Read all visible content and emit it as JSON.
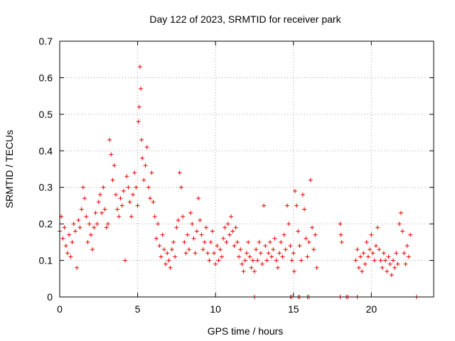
{
  "chart_data": {
    "type": "scatter",
    "title": "Day 122 of 2023, SRMTID for receiver park",
    "xlabel": "GPS time / hours",
    "ylabel": "SRMTID / TECUs",
    "xlim": [
      0,
      24
    ],
    "ylim": [
      0,
      0.7
    ],
    "xticks": [
      0,
      5,
      10,
      15,
      20
    ],
    "xtick_labels": [
      "0",
      "5",
      "10",
      "15",
      "20"
    ],
    "yticks": [
      0,
      0.1,
      0.2,
      0.3,
      0.4,
      0.5,
      0.6,
      0.7
    ],
    "ytick_labels": [
      "0",
      "0.1",
      "0.2",
      "0.3",
      "0.4",
      "0.5",
      "0.6",
      "0.7"
    ],
    "grid": true,
    "marker": "plus",
    "color": "#ee0000",
    "series": [
      {
        "name": "SRMTID",
        "points": [
          [
            0.0,
            0.18
          ],
          [
            0.1,
            0.22
          ],
          [
            0.2,
            0.16
          ],
          [
            0.3,
            0.19
          ],
          [
            0.4,
            0.14
          ],
          [
            0.5,
            0.12
          ],
          [
            0.6,
            0.17
          ],
          [
            0.7,
            0.11
          ],
          [
            0.8,
            0.15
          ],
          [
            0.9,
            0.2
          ],
          [
            1.0,
            0.18
          ],
          [
            1.1,
            0.08
          ],
          [
            1.2,
            0.21
          ],
          [
            1.3,
            0.19
          ],
          [
            1.4,
            0.24
          ],
          [
            1.5,
            0.3
          ],
          [
            1.6,
            0.27
          ],
          [
            1.7,
            0.22
          ],
          [
            1.8,
            0.15
          ],
          [
            1.9,
            0.2
          ],
          [
            2.0,
            0.17
          ],
          [
            2.1,
            0.13
          ],
          [
            2.2,
            0.19
          ],
          [
            2.3,
            0.23
          ],
          [
            2.4,
            0.2
          ],
          [
            2.5,
            0.26
          ],
          [
            2.6,
            0.28
          ],
          [
            2.7,
            0.23
          ],
          [
            2.8,
            0.3
          ],
          [
            2.9,
            0.24
          ],
          [
            3.0,
            0.19
          ],
          [
            3.1,
            0.2
          ],
          [
            3.2,
            0.43
          ],
          [
            3.3,
            0.39
          ],
          [
            3.4,
            0.32
          ],
          [
            3.5,
            0.36
          ],
          [
            3.6,
            0.28
          ],
          [
            3.7,
            0.24
          ],
          [
            3.8,
            0.22
          ],
          [
            3.9,
            0.27
          ],
          [
            4.0,
            0.25
          ],
          [
            4.1,
            0.29
          ],
          [
            4.2,
            0.1
          ],
          [
            4.3,
            0.33
          ],
          [
            4.4,
            0.3
          ],
          [
            4.5,
            0.26
          ],
          [
            4.6,
            0.22
          ],
          [
            4.7,
            0.28
          ],
          [
            4.8,
            0.34
          ],
          [
            4.9,
            0.3
          ],
          [
            5.0,
            0.25
          ],
          [
            5.05,
            0.48
          ],
          [
            5.1,
            0.52
          ],
          [
            5.15,
            0.63
          ],
          [
            5.2,
            0.57
          ],
          [
            5.25,
            0.43
          ],
          [
            5.3,
            0.38
          ],
          [
            5.4,
            0.32
          ],
          [
            5.5,
            0.36
          ],
          [
            5.6,
            0.41
          ],
          [
            5.7,
            0.3
          ],
          [
            5.8,
            0.27
          ],
          [
            5.9,
            0.34
          ],
          [
            6.0,
            0.26
          ],
          [
            6.1,
            0.22
          ],
          [
            6.2,
            0.16
          ],
          [
            6.3,
            0.2
          ],
          [
            6.4,
            0.14
          ],
          [
            6.5,
            0.11
          ],
          [
            6.6,
            0.17
          ],
          [
            6.7,
            0.13
          ],
          [
            6.8,
            0.09
          ],
          [
            6.9,
            0.12
          ],
          [
            7.0,
            0.1
          ],
          [
            7.1,
            0.08
          ],
          [
            7.2,
            0.13
          ],
          [
            7.3,
            0.15
          ],
          [
            7.4,
            0.11
          ],
          [
            7.5,
            0.19
          ],
          [
            7.6,
            0.21
          ],
          [
            7.7,
            0.34
          ],
          [
            7.8,
            0.3
          ],
          [
            7.9,
            0.22
          ],
          [
            8.0,
            0.15
          ],
          [
            8.1,
            0.12
          ],
          [
            8.2,
            0.17
          ],
          [
            8.3,
            0.13
          ],
          [
            8.4,
            0.23
          ],
          [
            8.5,
            0.2
          ],
          [
            8.6,
            0.16
          ],
          [
            8.7,
            0.12
          ],
          [
            8.8,
            0.18
          ],
          [
            8.9,
            0.27
          ],
          [
            9.0,
            0.21
          ],
          [
            9.1,
            0.17
          ],
          [
            9.2,
            0.13
          ],
          [
            9.3,
            0.15
          ],
          [
            9.4,
            0.19
          ],
          [
            9.5,
            0.12
          ],
          [
            9.6,
            0.1
          ],
          [
            9.7,
            0.15
          ],
          [
            9.8,
            0.18
          ],
          [
            9.9,
            0.12
          ],
          [
            10.0,
            0.09
          ],
          [
            10.1,
            0.14
          ],
          [
            10.2,
            0.1
          ],
          [
            10.3,
            0.13
          ],
          [
            10.4,
            0.11
          ],
          [
            10.5,
            0.16
          ],
          [
            10.6,
            0.19
          ],
          [
            10.7,
            0.15
          ],
          [
            10.8,
            0.2
          ],
          [
            10.9,
            0.17
          ],
          [
            11.0,
            0.22
          ],
          [
            11.1,
            0.18
          ],
          [
            11.2,
            0.14
          ],
          [
            11.3,
            0.19
          ],
          [
            11.4,
            0.15
          ],
          [
            11.5,
            0.11
          ],
          [
            11.6,
            0.13
          ],
          [
            11.7,
            0.09
          ],
          [
            11.8,
            0.07
          ],
          [
            11.9,
            0.1
          ],
          [
            12.0,
            0.12
          ],
          [
            12.1,
            0.15
          ],
          [
            12.2,
            0.11
          ],
          [
            12.3,
            0.08
          ],
          [
            12.4,
            0.1
          ],
          [
            12.5,
            0.07
          ],
          [
            12.6,
            0.13
          ],
          [
            12.7,
            0.1
          ],
          [
            12.8,
            0.15
          ],
          [
            12.9,
            0.12
          ],
          [
            13.0,
            0.09
          ],
          [
            13.1,
            0.25
          ],
          [
            13.2,
            0.14
          ],
          [
            13.3,
            0.1
          ],
          [
            13.4,
            0.12
          ],
          [
            13.5,
            0.15
          ],
          [
            13.6,
            0.11
          ],
          [
            13.7,
            0.13
          ],
          [
            13.8,
            0.16
          ],
          [
            13.9,
            0.1
          ],
          [
            14.0,
            0.08
          ],
          [
            14.1,
            0.12
          ],
          [
            14.2,
            0.15
          ],
          [
            14.3,
            0.11
          ],
          [
            14.4,
            0.17
          ],
          [
            14.5,
            0.13
          ],
          [
            14.6,
            0.25
          ],
          [
            14.7,
            0.2
          ],
          [
            14.8,
            0.14
          ],
          [
            14.9,
            0.1
          ],
          [
            15.0,
            0.12
          ],
          [
            15.05,
            0.07
          ],
          [
            15.1,
            0.29
          ],
          [
            15.2,
            0.25
          ],
          [
            15.3,
            0.18
          ],
          [
            15.4,
            0.14
          ],
          [
            15.5,
            0.1
          ],
          [
            15.6,
            0.28
          ],
          [
            15.7,
            0.24
          ],
          [
            15.8,
            0.16
          ],
          [
            15.9,
            0.11
          ],
          [
            16.0,
            0.15
          ],
          [
            16.1,
            0.32
          ],
          [
            16.2,
            0.19
          ],
          [
            16.3,
            0.13
          ],
          [
            16.4,
            0.17
          ],
          [
            16.5,
            0.08
          ],
          [
            12.5,
            0
          ],
          [
            14.8,
            0
          ],
          [
            14.9,
            0
          ],
          [
            15.3,
            0
          ],
          [
            15.4,
            0
          ],
          [
            15.9,
            0
          ],
          [
            16.0,
            0
          ],
          [
            18.0,
            0
          ],
          [
            18.4,
            0
          ],
          [
            18.5,
            0
          ],
          [
            19.1,
            0
          ],
          [
            22.9,
            0
          ],
          [
            18.0,
            0.2
          ],
          [
            18.1,
            0.15
          ],
          [
            18.05,
            0.17
          ],
          [
            19.0,
            0.1
          ],
          [
            19.1,
            0.13
          ],
          [
            19.2,
            0.08
          ],
          [
            19.3,
            0.11
          ],
          [
            19.4,
            0.07
          ],
          [
            19.5,
            0.12
          ],
          [
            19.6,
            0.09
          ],
          [
            19.7,
            0.15
          ],
          [
            19.8,
            0.11
          ],
          [
            19.9,
            0.13
          ],
          [
            20.0,
            0.17
          ],
          [
            20.1,
            0.12
          ],
          [
            20.2,
            0.1
          ],
          [
            20.3,
            0.14
          ],
          [
            20.4,
            0.19
          ],
          [
            20.5,
            0.13
          ],
          [
            20.6,
            0.1
          ],
          [
            20.7,
            0.08
          ],
          [
            20.8,
            0.12
          ],
          [
            20.9,
            0.1
          ],
          [
            21.0,
            0.07
          ],
          [
            21.1,
            0.11
          ],
          [
            21.2,
            0.09
          ],
          [
            21.3,
            0.06
          ],
          [
            21.4,
            0.1
          ],
          [
            21.5,
            0.08
          ],
          [
            21.6,
            0.12
          ],
          [
            21.7,
            0.09
          ],
          [
            21.8,
            0.2
          ],
          [
            21.9,
            0.23
          ],
          [
            22.0,
            0.18
          ],
          [
            22.1,
            0.12
          ],
          [
            22.2,
            0.09
          ],
          [
            22.3,
            0.14
          ],
          [
            22.4,
            0.11
          ],
          [
            22.5,
            0.17
          ]
        ]
      }
    ]
  }
}
